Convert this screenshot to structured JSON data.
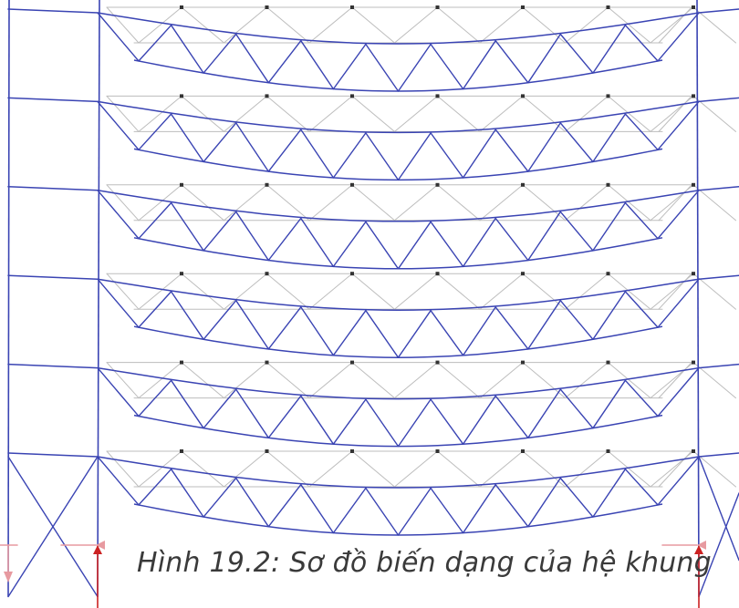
{
  "figure": {
    "caption": "Hình 19.2: Sơ đồ biến dạng của hệ khung",
    "structure": {
      "floors": 6,
      "panels_per_truss": 7,
      "side_bay_brace_pattern": "X"
    },
    "colors": {
      "deformed": "#3a44b3",
      "undeformed": "#bdbdbd",
      "node": "#333333",
      "support_arrow": "#cc2222",
      "reaction_arrow": "#e79aa0",
      "caption": "#3a3a3a"
    }
  }
}
